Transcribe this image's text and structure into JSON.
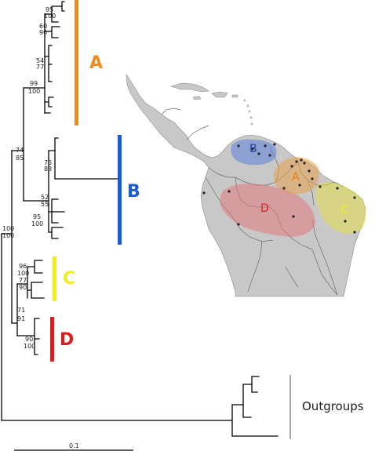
{
  "clades": {
    "A": {
      "label": "A",
      "color": "#F18A1C"
    },
    "B": {
      "label": "B",
      "color": "#1B5BD6"
    },
    "C": {
      "label": "C",
      "color": "#F2EE1C"
    },
    "D": {
      "label": "D",
      "color": "#D81F1F"
    }
  },
  "support": {
    "s1": "95",
    "s2": "100",
    "s3": "60",
    "s4": "90",
    "s5": "54",
    "s6": "77",
    "s7": "99",
    "s8": "100",
    "s9": "74",
    "s10": "85",
    "s11": "75",
    "s12": "83",
    "s13": "52",
    "s14": "55",
    "s15": "95",
    "s16": "100",
    "s17": "100",
    "s18": "100",
    "s19": "96",
    "s20": "100",
    "s21": "77",
    "s22": "90",
    "s23": "71",
    "s24": "91",
    "s25": "90",
    "s26": "100"
  },
  "outgroups_label": "Outgroups",
  "scale_label": "0.1",
  "map_labels": {
    "A": "A",
    "B": "B",
    "C": "C",
    "D": "D"
  },
  "colors": {
    "land": "#C8C8C8",
    "border": "#6b6b6b",
    "tree": "#000000",
    "region_A": "#E8A24E",
    "region_B": "#5B7FD8",
    "region_C": "#E3E04A",
    "region_D": "#E07A7E"
  }
}
